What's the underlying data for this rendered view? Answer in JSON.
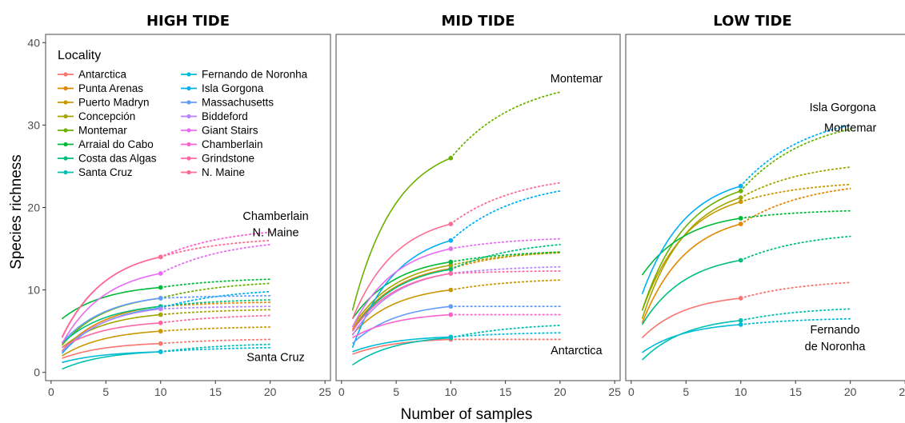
{
  "chart_data": {
    "type": "line",
    "ylabel": "Species richness",
    "xlabel": "Number of samples",
    "xlim": [
      -0.5,
      25.5
    ],
    "ylim": [
      -1,
      41
    ],
    "x_ticks": [
      0,
      5,
      10,
      15,
      20,
      25
    ],
    "y_ticks": [
      0,
      10,
      20,
      30,
      40
    ],
    "grid": false,
    "legend": {
      "title": "Locality",
      "placement": "top-left inside first panel",
      "entries": [
        {
          "name": "Antarctica",
          "color": "#F8766D"
        },
        {
          "name": "Punta Arenas",
          "color": "#E58700"
        },
        {
          "name": "Puerto Madryn",
          "color": "#C99800"
        },
        {
          "name": "Concepción",
          "color": "#A3A500"
        },
        {
          "name": "Montemar",
          "color": "#6BB100"
        },
        {
          "name": "Arraial do Cabo",
          "color": "#00BA38"
        },
        {
          "name": "Costa das Algas",
          "color": "#00BF7D"
        },
        {
          "name": "Santa Cruz",
          "color": "#00C0AF"
        },
        {
          "name": "Fernando de Noronha",
          "color": "#00BCD8"
        },
        {
          "name": "Isla Gorgona",
          "color": "#00B0F6"
        },
        {
          "name": "Massachusetts",
          "color": "#619CFF"
        },
        {
          "name": "Biddeford",
          "color": "#B983FF"
        },
        {
          "name": "Giant Stairs",
          "color": "#E76BF3"
        },
        {
          "name": "Chamberlain",
          "color": "#FD61D1"
        },
        {
          "name": "Grindstone",
          "color": "#FF67A4"
        },
        {
          "name": "N. Maine",
          "color": "#FF6C91"
        }
      ]
    },
    "panels": [
      {
        "title": "HIGH TIDE",
        "annotations": [
          {
            "text": "Chamberlain",
            "x": 20.5,
            "y": 18.5
          },
          {
            "text": "N. Maine",
            "x": 20.5,
            "y": 16.5
          },
          {
            "text": "Santa Cruz",
            "x": 20.5,
            "y": 1.4
          }
        ],
        "series": [
          {
            "name": "Antarctica",
            "start": 1.7,
            "observed": 3.5,
            "extrap": 4.0
          },
          {
            "name": "Punta Arenas",
            "start": 2.6,
            "observed": 8.0,
            "extrap": 8.5
          },
          {
            "name": "Puerto Madryn",
            "start": 2.0,
            "observed": 5.0,
            "extrap": 5.5
          },
          {
            "name": "Concepción",
            "start": 3.0,
            "observed": 7.0,
            "extrap": 7.6
          },
          {
            "name": "Montemar",
            "start": 3.3,
            "observed": 9.0,
            "extrap": 10.8
          },
          {
            "name": "Arraial do Cabo",
            "start": 6.5,
            "observed": 10.3,
            "extrap": 11.3
          },
          {
            "name": "Costa das Algas",
            "start": 3.5,
            "observed": 8.0,
            "extrap": 8.8
          },
          {
            "name": "Santa Cruz",
            "start": 0.4,
            "observed": 2.5,
            "extrap": 3.4
          },
          {
            "name": "Fernando de Noronha",
            "start": 1.2,
            "observed": 2.5,
            "extrap": 3.0
          },
          {
            "name": "Isla Gorgona",
            "start": 2.3,
            "observed": 7.8,
            "extrap": 9.8
          },
          {
            "name": "Massachusetts",
            "start": 3.6,
            "observed": 9.0,
            "extrap": 9.3
          },
          {
            "name": "Biddeford",
            "start": 2.5,
            "observed": 7.7,
            "extrap": 8.0
          },
          {
            "name": "Giant Stairs",
            "start": 3.5,
            "observed": 12.0,
            "extrap": 15.5
          },
          {
            "name": "Chamberlain",
            "start": 4.2,
            "observed": 14.0,
            "extrap": 17.0
          },
          {
            "name": "Grindstone",
            "start": 3.0,
            "observed": 6.0,
            "extrap": 6.9
          },
          {
            "name": "N. Maine",
            "start": 4.3,
            "observed": 14.0,
            "extrap": 16.0
          }
        ]
      },
      {
        "title": "MID TIDE",
        "annotations": [
          {
            "text": "Montemar",
            "x": 21.5,
            "y": 35.2
          },
          {
            "text": "Antarctica",
            "x": 21.5,
            "y": 2.2
          }
        ],
        "series": [
          {
            "name": "Antarctica",
            "start": 2.2,
            "observed": 4.0,
            "extrap": 4.0
          },
          {
            "name": "Punta Arenas",
            "start": 5.2,
            "observed": 12.6,
            "extrap": 14.6
          },
          {
            "name": "Puerto Madryn",
            "start": 4.6,
            "observed": 10.0,
            "extrap": 11.2
          },
          {
            "name": "Concepción",
            "start": 5.5,
            "observed": 13.0,
            "extrap": 14.5
          },
          {
            "name": "Montemar",
            "start": 7.5,
            "observed": 26.0,
            "extrap": 34.0
          },
          {
            "name": "Arraial do Cabo",
            "start": 6.5,
            "observed": 13.4,
            "extrap": 14.6
          },
          {
            "name": "Costa das Algas",
            "start": 5.0,
            "observed": 12.5,
            "extrap": 15.5
          },
          {
            "name": "Santa Cruz",
            "start": 0.9,
            "observed": 4.2,
            "extrap": 5.7
          },
          {
            "name": "Fernando de Noronha",
            "start": 2.5,
            "observed": 4.3,
            "extrap": 4.8
          },
          {
            "name": "Isla Gorgona",
            "start": 3.0,
            "observed": 16.0,
            "extrap": 22.0
          },
          {
            "name": "Massachusetts",
            "start": 3.5,
            "observed": 8.0,
            "extrap": 8.0
          },
          {
            "name": "Biddeford",
            "start": 4.5,
            "observed": 12.0,
            "extrap": 12.8
          },
          {
            "name": "Giant Stairs",
            "start": 5.5,
            "observed": 15.0,
            "extrap": 16.2
          },
          {
            "name": "Chamberlain",
            "start": 4.2,
            "observed": 7.0,
            "extrap": 7.0
          },
          {
            "name": "Grindstone",
            "start": 5.0,
            "observed": 12.0,
            "extrap": 12.3
          },
          {
            "name": "N. Maine",
            "start": 6.5,
            "observed": 18.0,
            "extrap": 23.0
          }
        ]
      },
      {
        "title": "LOW TIDE",
        "annotations": [
          {
            "text": "Isla Gorgona",
            "x": 19.3,
            "y": 31.7
          },
          {
            "text": "Montemar",
            "x": 20.0,
            "y": 29.2
          },
          {
            "text": "Fernando",
            "x": 18.6,
            "y": 4.7
          },
          {
            "text": "de Noronha",
            "x": 18.6,
            "y": 2.7
          }
        ],
        "series": [
          {
            "name": "Antarctica",
            "start": 4.2,
            "observed": 9.0,
            "extrap": 10.9
          },
          {
            "name": "Punta Arenas",
            "start": 6.0,
            "observed": 18.0,
            "extrap": 22.3
          },
          {
            "name": "Puerto Madryn",
            "start": 7.5,
            "observed": 20.7,
            "extrap": 22.8
          },
          {
            "name": "Concepción",
            "start": 6.5,
            "observed": 21.2,
            "extrap": 24.9
          },
          {
            "name": "Montemar",
            "start": 7.5,
            "observed": 22.0,
            "extrap": 29.5
          },
          {
            "name": "Arraial do Cabo",
            "start": 11.8,
            "observed": 18.7,
            "extrap": 19.6
          },
          {
            "name": "Costa das Algas",
            "start": 5.8,
            "observed": 13.6,
            "extrap": 16.5
          },
          {
            "name": "Santa Cruz",
            "start": 1.5,
            "observed": 6.3,
            "extrap": 7.7
          },
          {
            "name": "Fernando de Noronha",
            "start": 2.4,
            "observed": 5.8,
            "extrap": 6.5
          },
          {
            "name": "Isla Gorgona",
            "start": 9.5,
            "observed": 22.6,
            "extrap": 30.0
          }
        ]
      }
    ]
  }
}
